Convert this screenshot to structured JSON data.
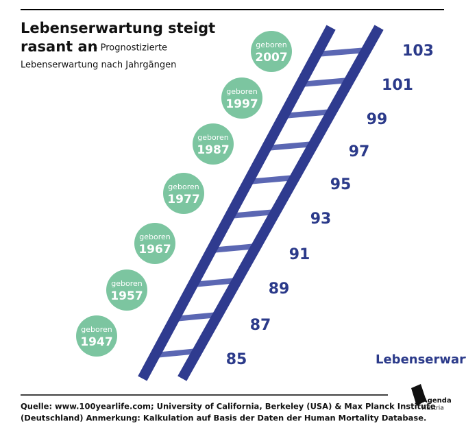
{
  "header": {
    "title_line1": "Lebenserwartung steigt",
    "title_line2": "rasant an",
    "subtitle_inline": "– Prognostizierte",
    "subtitle_line2": "Lebenserwartung nach Jahrgängen"
  },
  "cohorts": [
    {
      "label": "geboren",
      "year": "1947"
    },
    {
      "label": "geboren",
      "year": "1957"
    },
    {
      "label": "geboren",
      "year": "1967"
    },
    {
      "label": "geboren",
      "year": "1977"
    },
    {
      "label": "geboren",
      "year": "1987"
    },
    {
      "label": "geboren",
      "year": "1997"
    },
    {
      "label": "geboren",
      "year": "2007"
    }
  ],
  "ladder_values": [
    "85",
    "87",
    "89",
    "91",
    "93",
    "95",
    "97",
    "99",
    "101",
    "103"
  ],
  "ladder_label": "Lebenserwartung",
  "footer": {
    "source_line1": "Quelle: www.100yearlife.com; University of California, Berkeley (USA) & Max Planck Institute",
    "source_line2": "(Deutschland) Anmerkung: Kalkulation auf Basis der Daten der Human Mortality Database.",
    "logo_line1": "Agenda",
    "logo_line2": "Austria"
  }
}
